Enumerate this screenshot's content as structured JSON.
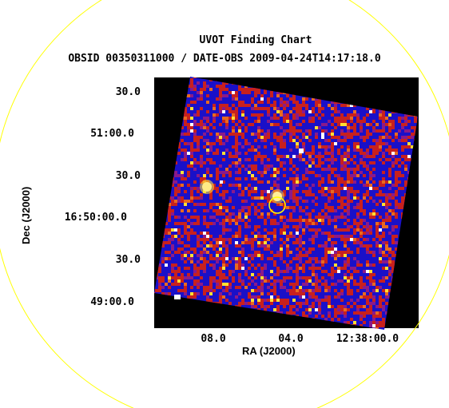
{
  "header": {
    "title": "UVOT Finding Chart",
    "subtitle": "OBSID 00350311000 / DATE-OBS 2009-04-24T14:17:18.0"
  },
  "axes": {
    "xlabel": "RA (J2000)",
    "ylabel": "Dec (J2000)",
    "xticks": [
      "08.0",
      "04.0",
      "12:38:00.0"
    ],
    "yticks": [
      "30.0",
      "51:00.0",
      "30.0",
      "16:50:00.0",
      "30.0",
      "49:00.0"
    ]
  },
  "colors": {
    "background": "#000000",
    "field_low": "#1a10c8",
    "field_mid": "#c8201e",
    "field_high": "#ffe033",
    "circle": "#ffff00"
  },
  "image": {
    "colormap": "blue-red-yellow",
    "sources": [
      "bright star west",
      "target",
      "faint source north",
      "star southwest"
    ],
    "markers": [
      "large yellow circle",
      "small yellow circle at target"
    ]
  }
}
